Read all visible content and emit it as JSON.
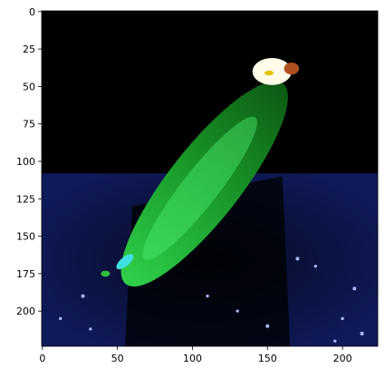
{
  "chart_data": {
    "type": "image",
    "xlim": [
      -0.5,
      223.5
    ],
    "ylim": [
      223.5,
      -0.5
    ],
    "xticks": [
      0,
      50,
      100,
      150,
      200
    ],
    "yticks": [
      0,
      25,
      50,
      75,
      100,
      125,
      150,
      175,
      200
    ]
  }
}
